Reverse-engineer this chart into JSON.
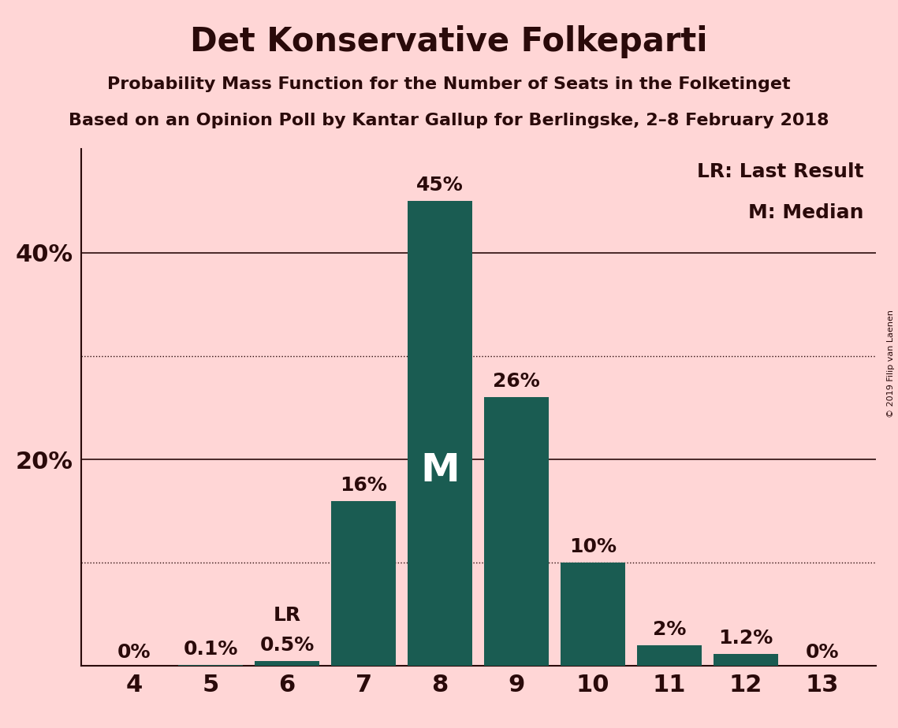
{
  "title": "Det Konservative Folkeparti",
  "subtitle1": "Probability Mass Function for the Number of Seats in the Folketinget",
  "subtitle2": "Based on an Opinion Poll by Kantar Gallup for Berlingske, 2–8 February 2018",
  "copyright": "© 2019 Filip van Laenen",
  "seats": [
    4,
    5,
    6,
    7,
    8,
    9,
    10,
    11,
    12,
    13
  ],
  "probabilities": [
    0.0,
    0.1,
    0.5,
    16.0,
    45.0,
    26.0,
    10.0,
    2.0,
    1.2,
    0.0
  ],
  "bar_color": "#1a5c52",
  "background_color": "#FFD6D6",
  "label_color": "#2a0a0a",
  "ylim": [
    0,
    50
  ],
  "solid_gridlines": [
    20,
    40
  ],
  "dotted_gridlines": [
    10,
    30
  ],
  "lr_seat": 6,
  "median_seat": 8,
  "bar_labels": [
    "0%",
    "0.1%",
    "0.5%",
    "16%",
    "45%",
    "26%",
    "10%",
    "2%",
    "1.2%",
    "0%"
  ],
  "title_fontsize": 30,
  "subtitle_fontsize": 16,
  "axis_fontsize": 22,
  "bar_label_fontsize": 18,
  "legend_fontsize": 18,
  "copyright_fontsize": 8
}
